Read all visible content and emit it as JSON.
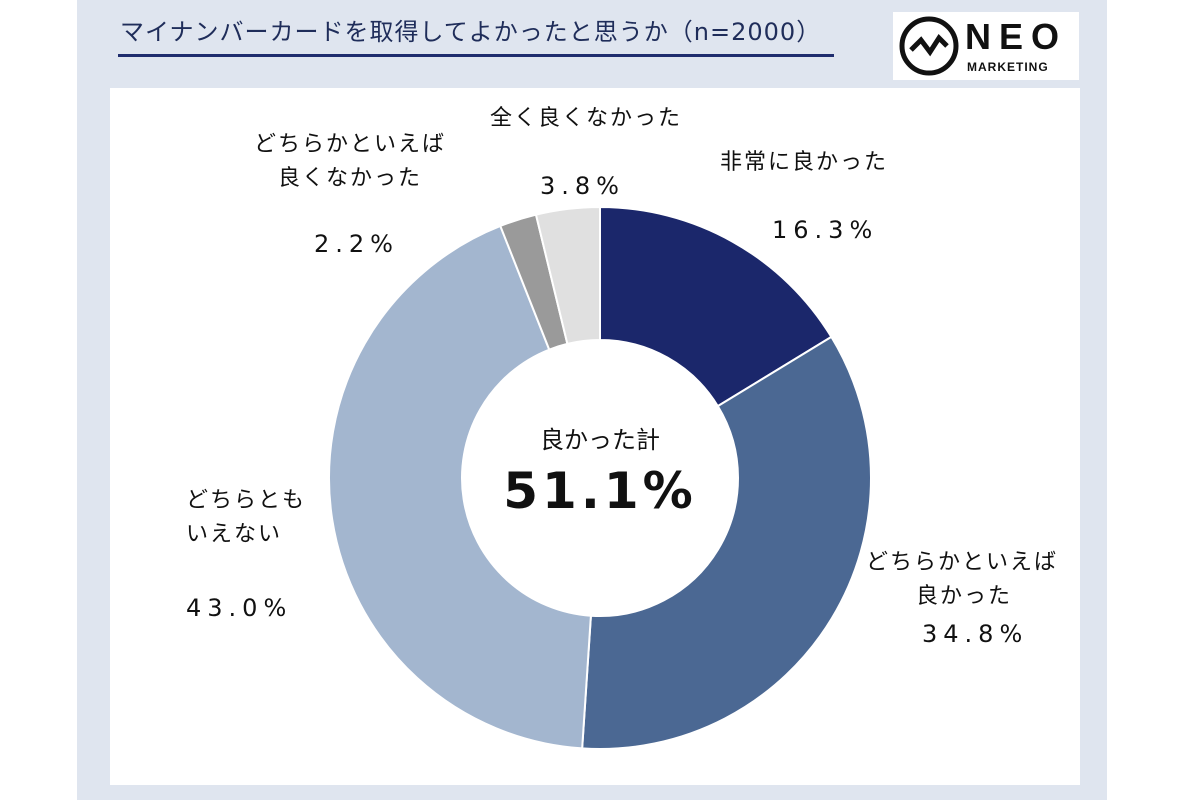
{
  "title": "マイナンバーカードを取得してよかったと思うか（n=2000）",
  "logo": {
    "word": "NEO",
    "sub": "MARKETING",
    "icon": "neo-wave-icon"
  },
  "chart_data": {
    "type": "pie",
    "donut": true,
    "center_caption": "良かった計",
    "center_value": "51.1%",
    "slices": [
      {
        "label": [
          "非常に良かった"
        ],
        "value": 16.3,
        "display": "16.3%",
        "color": "#1b276b"
      },
      {
        "label": [
          "どちらかといえば",
          "良かった"
        ],
        "value": 34.8,
        "display": "34.8%",
        "color": "#4b6893"
      },
      {
        "label": [
          "どちらとも",
          "いえない"
        ],
        "value": 43.0,
        "display": "43.0%",
        "color": "#a3b6cf"
      },
      {
        "label": [
          "どちらかといえば",
          "良くなかった"
        ],
        "value": 2.2,
        "display": "2.2%",
        "color": "#9a9a9a"
      },
      {
        "label": [
          "全く良くなかった"
        ],
        "value": 3.8,
        "display": "3.8%",
        "color": "#e0e0e0"
      }
    ]
  }
}
